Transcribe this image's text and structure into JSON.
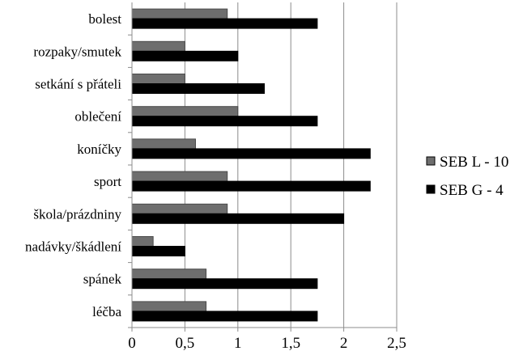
{
  "chart_data": {
    "type": "bar",
    "orientation": "horizontal",
    "categories": [
      "bolest",
      "rozpaky/smutek",
      "setkání s přáteli",
      "oblečení",
      "koníčky",
      "sport",
      "škola/prázdniny",
      "nadávky/škádlení",
      "spánek",
      "léčba"
    ],
    "series": [
      {
        "name": "SEB L - 10",
        "color": "#6e6e6e",
        "values": [
          0.9,
          0.5,
          0.5,
          1.0,
          0.6,
          0.9,
          0.9,
          0.2,
          0.7,
          0.7
        ]
      },
      {
        "name": "SEB G - 4",
        "color": "#000000",
        "values": [
          1.75,
          1.0,
          1.25,
          1.75,
          2.25,
          2.25,
          2.0,
          0.5,
          1.75,
          1.75
        ]
      }
    ],
    "xlim": [
      0,
      2.5
    ],
    "xticks": [
      "0",
      "0,5",
      "1",
      "1,5",
      "2",
      "2,5"
    ],
    "grid": true,
    "legend_position": "right"
  }
}
